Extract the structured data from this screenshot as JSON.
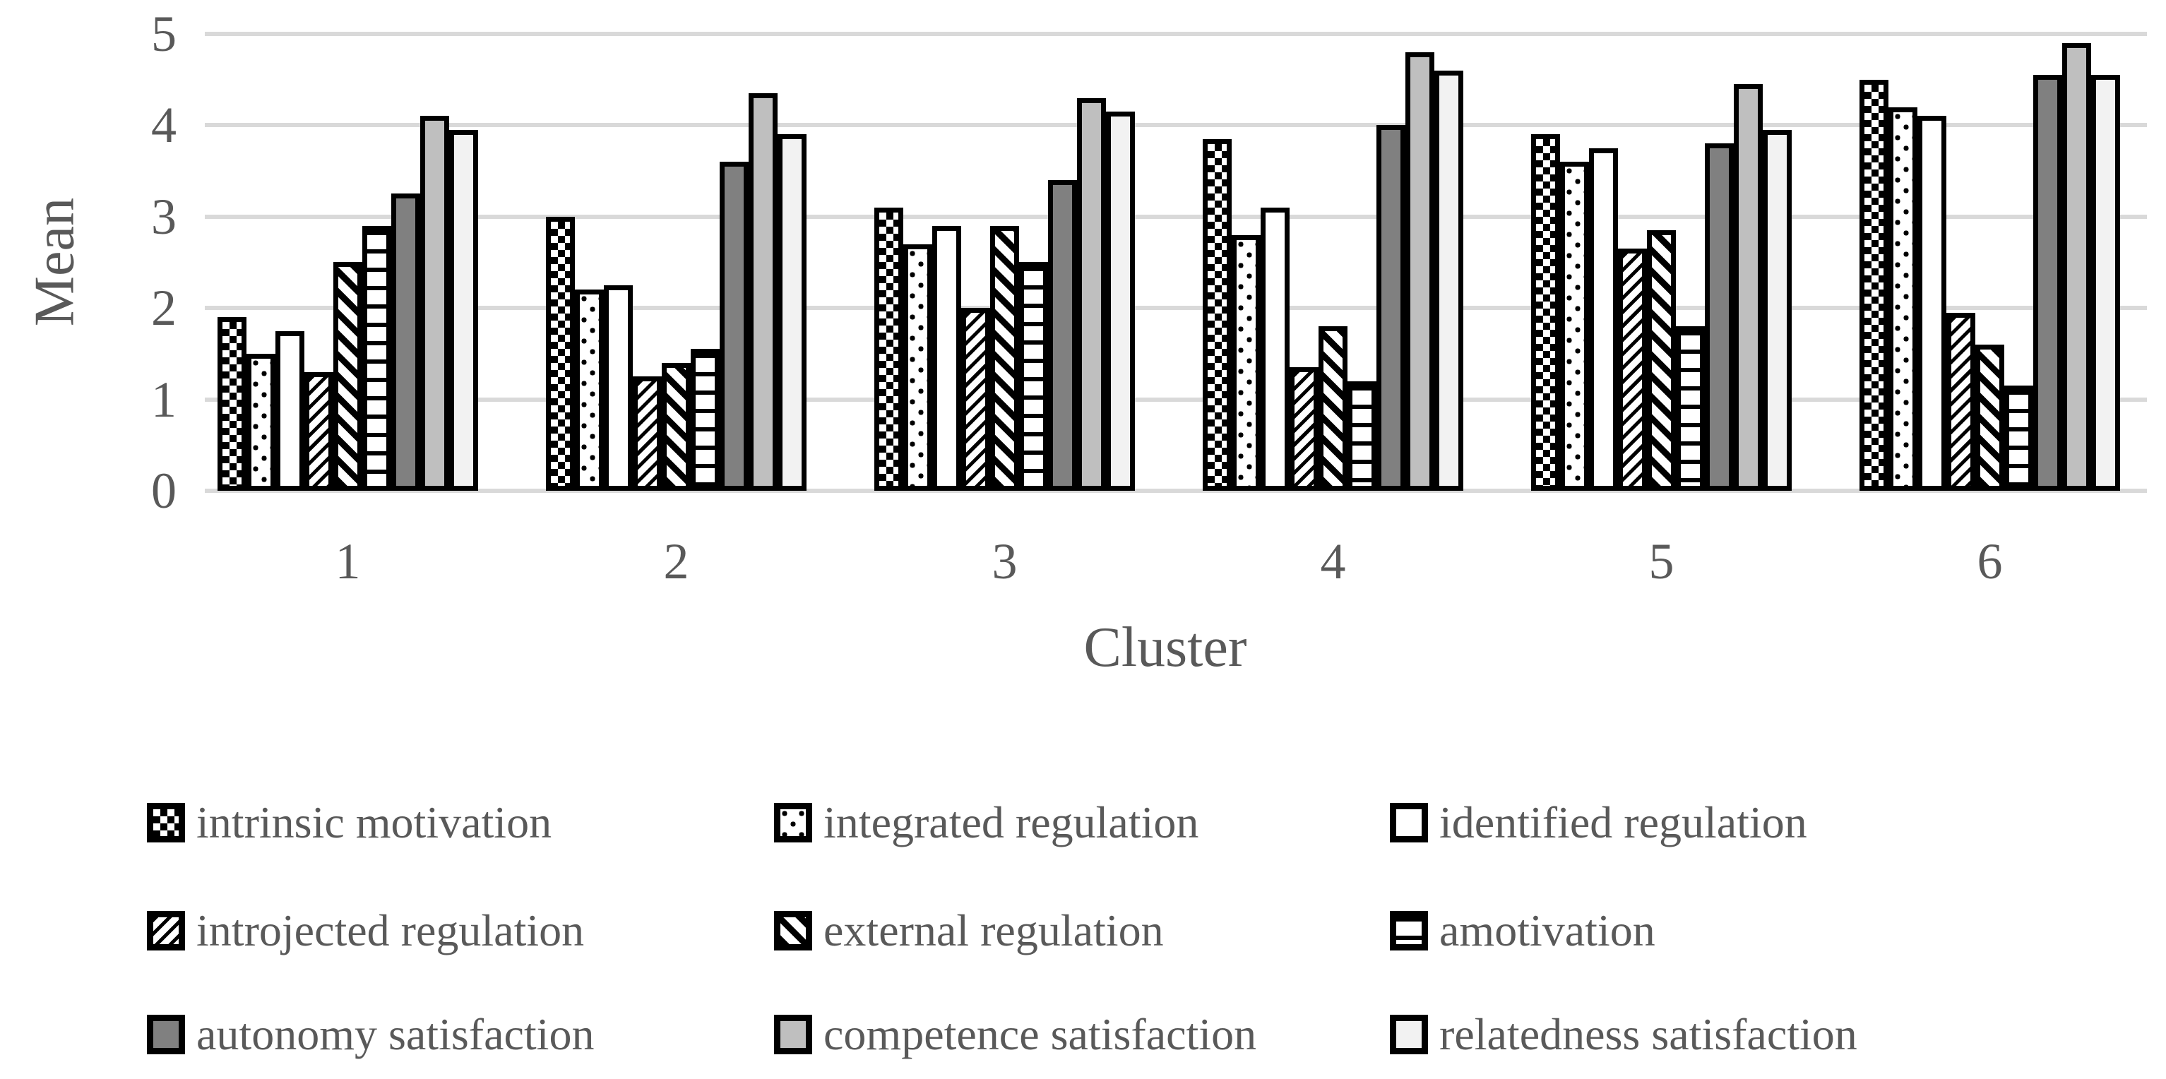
{
  "figure": {
    "background": "#ffffff",
    "text_color": "#595959",
    "gridline_color": "#d9d9d9",
    "bar_outline_color": "#000000"
  },
  "chart_data": {
    "type": "bar",
    "title": "",
    "xlabel": "Cluster",
    "ylabel": "Mean",
    "ylim": [
      0,
      5
    ],
    "yticks": [
      0,
      1,
      2,
      3,
      4,
      5
    ],
    "grid": "horizontal",
    "legend_position": "bottom",
    "categories": [
      "1",
      "2",
      "3",
      "4",
      "5",
      "6"
    ],
    "series": [
      {
        "name": "intrinsic motivation",
        "pattern": "checker",
        "values": [
          1.9,
          3.0,
          3.1,
          3.85,
          3.9,
          4.5
        ]
      },
      {
        "name": "integrated regulation",
        "pattern": "dots",
        "values": [
          1.5,
          2.2,
          2.7,
          2.8,
          3.6,
          4.2
        ]
      },
      {
        "name": "identified regulation",
        "pattern": "plain",
        "values": [
          1.75,
          2.25,
          2.9,
          3.1,
          3.75,
          4.1
        ]
      },
      {
        "name": "introjected regulation",
        "pattern": "diag-back",
        "values": [
          1.3,
          1.25,
          2.0,
          1.35,
          2.65,
          1.95
        ]
      },
      {
        "name": "external regulation",
        "pattern": "diag-fwd",
        "values": [
          2.5,
          1.4,
          2.9,
          1.8,
          2.85,
          1.6
        ]
      },
      {
        "name": "amotivation",
        "pattern": "hlines",
        "values": [
          2.9,
          1.55,
          2.5,
          1.2,
          1.8,
          1.15
        ]
      },
      {
        "name": "autonomy satisfaction",
        "pattern": "solid",
        "color": "#808080",
        "values": [
          3.25,
          3.6,
          3.4,
          4.0,
          3.8,
          4.55
        ]
      },
      {
        "name": "competence satisfaction",
        "pattern": "solid",
        "color": "#bfbfbf",
        "values": [
          4.1,
          4.35,
          4.3,
          4.8,
          4.45,
          4.9
        ]
      },
      {
        "name": "relatedness satisfaction",
        "pattern": "solid",
        "color": "#f2f2f2",
        "values": [
          3.95,
          3.9,
          4.15,
          4.6,
          3.95,
          4.55
        ]
      }
    ]
  }
}
